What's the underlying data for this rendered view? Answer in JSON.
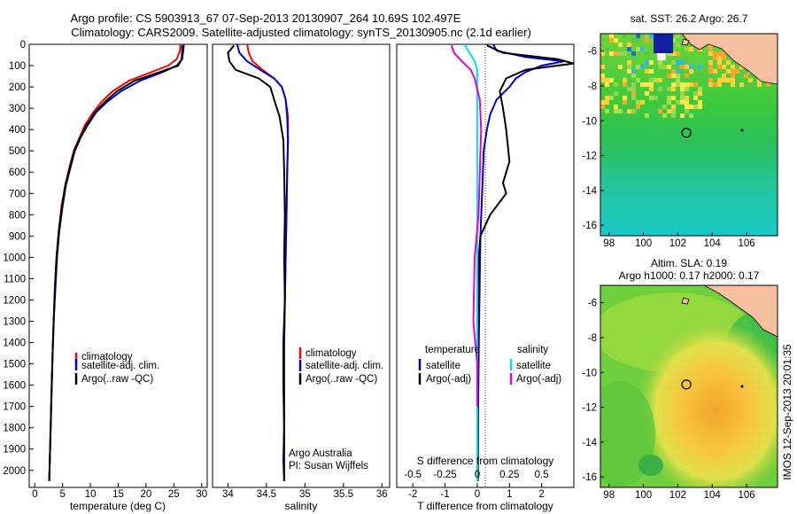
{
  "header": {
    "title_line1": "Argo profile: CS 5903913_67 07-Sep-2013 20130907_264 10.69S 102.497E",
    "title_line2": "Climatology: CARS2009. Satellite-adjusted climatology: synTS_20130905.nc (2.1d earlier)"
  },
  "side_text": "IMOS 12-Sep-2013 20:01:35",
  "colors": {
    "climatology": "#ff0000",
    "satellite": "#0000cc",
    "argo": "#000000",
    "salinity_diff": "#00e0f0",
    "argo_salinity_diff": "#e000e0"
  },
  "chart_data": [
    {
      "id": "temperature",
      "type": "line",
      "xlabel": "temperature (deg C)",
      "ylabel": "",
      "xlim": [
        -1,
        31
      ],
      "ylim": [
        2080,
        0
      ],
      "xticks": [
        0,
        5,
        10,
        15,
        20,
        25,
        30
      ],
      "yticks": [
        0,
        100,
        200,
        300,
        400,
        500,
        600,
        700,
        800,
        900,
        1000,
        1100,
        1200,
        1300,
        1400,
        1500,
        1600,
        1700,
        1800,
        1900,
        2000
      ],
      "legend": [
        "climatology",
        "satellite-adj. clim.",
        "Argo(..raw -QC)"
      ],
      "series": [
        {
          "name": "climatology",
          "color": "#ff0000",
          "x": [
            26.2,
            26.1,
            25.5,
            24,
            21,
            17,
            14,
            12,
            10.5,
            9,
            8,
            7,
            6.2,
            5.5,
            4.8,
            4.3,
            3.9,
            3.6,
            3.4,
            3.2,
            3.0,
            2.8,
            2.6
          ],
          "y": [
            0,
            30,
            70,
            100,
            130,
            170,
            220,
            270,
            320,
            380,
            440,
            500,
            580,
            660,
            760,
            880,
            1000,
            1150,
            1300,
            1450,
            1650,
            1850,
            2050
          ]
        },
        {
          "name": "satellite-adj. clim.",
          "color": "#0000cc",
          "x": [
            26.8,
            26.7,
            26.5,
            25.5,
            23,
            19,
            15.5,
            13,
            11,
            9.5,
            8.2,
            7.2,
            6.4,
            5.6,
            5.0,
            4.4,
            4.0,
            3.7,
            3.4,
            3.2,
            3.0,
            2.8,
            2.6
          ],
          "y": [
            0,
            30,
            70,
            100,
            130,
            170,
            220,
            270,
            320,
            380,
            440,
            500,
            580,
            660,
            760,
            880,
            1000,
            1150,
            1300,
            1450,
            1650,
            1850,
            2050
          ]
        },
        {
          "name": "Argo(..raw -QC)",
          "color": "#000000",
          "x": [
            26.5,
            26.5,
            26.4,
            25.8,
            22.5,
            18,
            14.8,
            12.6,
            10.8,
            9.3,
            8.1,
            7.1,
            6.3,
            5.5,
            4.9,
            4.3,
            3.9,
            3.6,
            3.4,
            3.2,
            3.0,
            2.8,
            2.6
          ],
          "y": [
            5,
            30,
            70,
            100,
            130,
            170,
            220,
            270,
            320,
            380,
            440,
            500,
            580,
            660,
            760,
            880,
            1000,
            1150,
            1300,
            1450,
            1650,
            1850,
            2050
          ]
        }
      ]
    },
    {
      "id": "salinity",
      "type": "line",
      "xlabel": "salinity",
      "ylabel": "",
      "xlim": [
        33.8,
        36.1
      ],
      "ylim": [
        2080,
        0
      ],
      "xticks": [
        34,
        34.5,
        35,
        35.5,
        36
      ],
      "legend": [
        "climatology",
        "satellite-adj. clim.",
        "Argo(..raw -QC)"
      ],
      "annotations": [
        "Argo Australia",
        "PI: Susan Wijffels"
      ],
      "series": [
        {
          "name": "climatology",
          "color": "#ff0000",
          "x": [
            34.25,
            34.27,
            34.32,
            34.45,
            34.6,
            34.7,
            34.75,
            34.78,
            34.78,
            34.77,
            34.76,
            34.75,
            34.74,
            34.73,
            34.73,
            34.73,
            34.73,
            34.73
          ],
          "y": [
            0,
            40,
            80,
            120,
            160,
            200,
            260,
            340,
            450,
            600,
            800,
            1000,
            1200,
            1400,
            1600,
            1800,
            1950,
            2050
          ]
        },
        {
          "name": "satellite-adj. clim.",
          "color": "#0000cc",
          "x": [
            34.12,
            34.15,
            34.25,
            34.42,
            34.6,
            34.7,
            34.75,
            34.77,
            34.78,
            34.77,
            34.76,
            34.75,
            34.74,
            34.73,
            34.73,
            34.73,
            34.73,
            34.73
          ],
          "y": [
            0,
            40,
            80,
            120,
            160,
            200,
            260,
            340,
            450,
            600,
            800,
            1000,
            1200,
            1400,
            1600,
            1800,
            1950,
            2050
          ]
        },
        {
          "name": "Argo(..raw -QC)",
          "color": "#000000",
          "x": [
            34.08,
            34.0,
            34.02,
            34.1,
            34.4,
            34.55,
            34.6,
            34.67,
            34.72,
            34.73,
            34.74,
            34.73,
            34.74,
            34.72,
            34.72,
            34.73,
            34.72,
            34.73
          ],
          "y": [
            5,
            40,
            80,
            120,
            160,
            200,
            260,
            340,
            450,
            600,
            800,
            1000,
            1200,
            1400,
            1600,
            1800,
            1950,
            2050
          ]
        }
      ]
    },
    {
      "id": "differences",
      "type": "line",
      "xlabel": "T difference from climatology",
      "xlabel_top": "S difference from climatology",
      "xlim": [
        -2.5,
        3
      ],
      "ylim": [
        2080,
        0
      ],
      "xticks": [
        -2,
        -1,
        0,
        1,
        2
      ],
      "xticks_s": [
        "-0.5",
        "-0.25",
        "0",
        "0.25",
        "0.5"
      ],
      "legend_left": [
        "temperature",
        "satellite",
        "Argo(-adj)"
      ],
      "legend_right": [
        "salinity",
        "satellite",
        "Argo(-adj)"
      ],
      "series": [
        {
          "name": "temperature satellite",
          "color": "#0000cc",
          "x": [
            0.5,
            0.6,
            1.5,
            2.7,
            2.0,
            1.5,
            1.2,
            1.0,
            0.6,
            0.4,
            0.3,
            0.2,
            0.15,
            0.1,
            0.08,
            0.05,
            0.03,
            0.02,
            0.02
          ],
          "y": [
            0,
            30,
            60,
            80,
            100,
            130,
            160,
            200,
            260,
            330,
            400,
            500,
            700,
            900,
            1100,
            1400,
            1700,
            1950,
            2050
          ]
        },
        {
          "name": "temperature Argo(-adj)",
          "color": "#000000",
          "x": [
            0.3,
            0.8,
            2.5,
            3.0,
            1.5,
            0.9,
            0.7,
            0.8,
            0.9,
            1.0,
            0.8,
            0.9,
            0.4,
            0.1,
            0.05,
            0.03,
            0.02,
            0.02
          ],
          "y": [
            5,
            40,
            70,
            90,
            120,
            160,
            220,
            300,
            400,
            550,
            650,
            700,
            800,
            900,
            1000,
            1300,
            1700,
            2050
          ]
        },
        {
          "name": "salinity satellite",
          "color": "#00e0f0",
          "x": [
            -0.1,
            -0.06,
            -0.02,
            0,
            0,
            0,
            0,
            0,
            0,
            0
          ],
          "y": [
            0,
            40,
            80,
            120,
            160,
            300,
            700,
            1100,
            1600,
            2050
          ]
        },
        {
          "name": "salinity Argo(-adj)",
          "color": "#e000e0",
          "x": [
            -0.2,
            -0.18,
            -0.12,
            -0.05,
            -0.02,
            0.02,
            0.03,
            0.02,
            0.01,
            -0.02,
            -0.03,
            0,
            0
          ],
          "y": [
            5,
            40,
            80,
            120,
            160,
            260,
            400,
            600,
            800,
            1000,
            1300,
            1500,
            1700
          ]
        }
      ]
    },
    {
      "id": "sst-map",
      "type": "heatmap",
      "title": "sat. SST: 26.2 Argo: 26.7",
      "xticks": [
        98,
        100,
        102,
        104,
        106
      ],
      "yticks": [
        -6,
        -8,
        -10,
        -12,
        -14,
        -16
      ],
      "xlim": [
        97.5,
        107.8
      ],
      "ylim": [
        -16.6,
        -5.0
      ],
      "marker": {
        "lon": 102.5,
        "lat": -10.69
      }
    },
    {
      "id": "sla-map",
      "type": "heatmap",
      "title_line1": "Altim. SLA: 0.19",
      "title_line2": "Argo h1000: 0.17 h2000: 0.17",
      "xticks": [
        98,
        100,
        102,
        104,
        106
      ],
      "yticks": [
        -6,
        -8,
        -10,
        -12,
        -14,
        -16
      ],
      "xlim": [
        97.5,
        107.8
      ],
      "ylim": [
        -16.6,
        -5.0
      ],
      "marker": {
        "lon": 102.5,
        "lat": -10.69
      }
    }
  ]
}
